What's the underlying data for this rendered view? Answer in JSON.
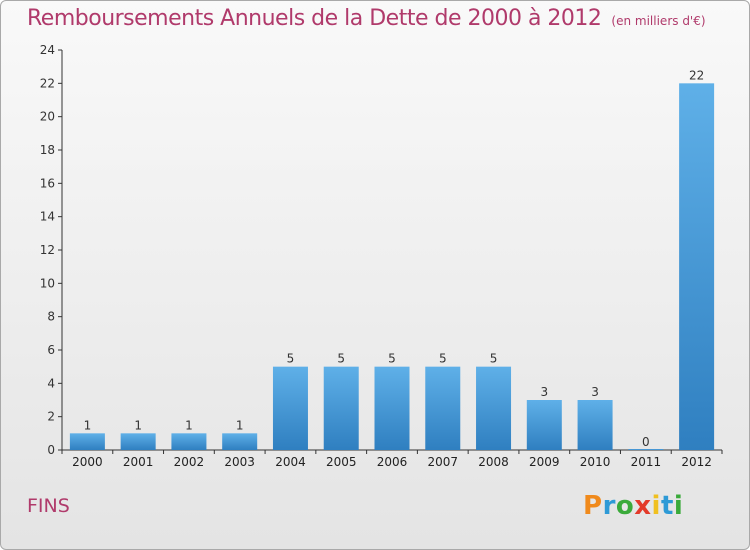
{
  "chart_data": {
    "type": "bar",
    "title": "Remboursements Annuels de la Dette de 2000 à 2012",
    "subtitle": "(en milliers d'€)",
    "categories": [
      "2000",
      "2001",
      "2002",
      "2003",
      "2004",
      "2005",
      "2006",
      "2007",
      "2008",
      "2009",
      "2010",
      "2011",
      "2012"
    ],
    "values": [
      1,
      1,
      1,
      1,
      5,
      5,
      5,
      5,
      5,
      3,
      3,
      0,
      22
    ],
    "ylim": [
      0,
      24
    ],
    "yticks": [
      0,
      2,
      4,
      6,
      8,
      10,
      12,
      14,
      16,
      18,
      20,
      22,
      24
    ],
    "xlabel": "",
    "ylabel": "",
    "grid": false,
    "bar_color_top": "#5fb0e8",
    "bar_color_bottom": "#2f7fc0"
  },
  "place_name": "FINS",
  "logo": {
    "letters": [
      "P",
      "r",
      "o",
      "x",
      "i",
      "t",
      "i"
    ],
    "colors": [
      "#f08a1c",
      "#2e9ad6",
      "#3aaa3a",
      "#e33a2a",
      "#f0c020",
      "#2e9ad6",
      "#3aaa3a"
    ]
  },
  "colors": {
    "title": "#b03a6b",
    "axis": "#333333"
  }
}
